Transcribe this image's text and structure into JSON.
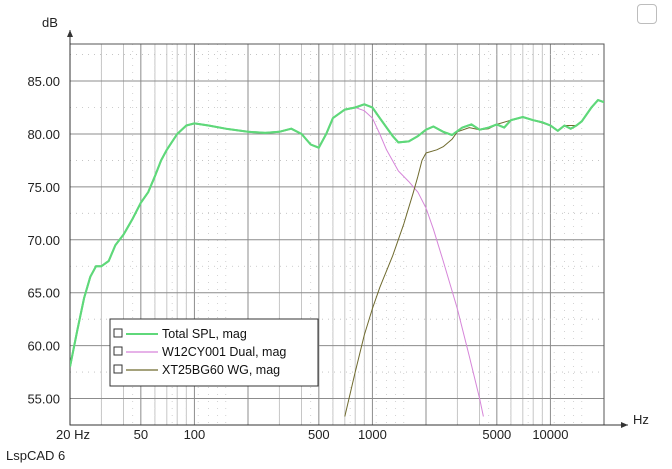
{
  "app_label": "LspCAD 6",
  "chart_data": {
    "type": "line",
    "xscale": "log",
    "xlabel": "Hz",
    "ylabel": "dB",
    "xlim": [
      20,
      20000
    ],
    "ylim": [
      52.5,
      88.5
    ],
    "grid": true,
    "legend_position": "bottom-left",
    "x_tick_labels": [
      {
        "value": 20,
        "label": "20 Hz"
      },
      {
        "value": 50,
        "label": "50"
      },
      {
        "value": 100,
        "label": "100"
      },
      {
        "value": 500,
        "label": "500"
      },
      {
        "value": 1000,
        "label": "1000"
      },
      {
        "value": 5000,
        "label": "5000"
      },
      {
        "value": 10000,
        "label": "10000"
      }
    ],
    "y_ticks": [
      55,
      60,
      65,
      70,
      75,
      80,
      85
    ],
    "y_tick_labels": [
      "55.00",
      "60.00",
      "65.00",
      "70.00",
      "75.00",
      "80.00",
      "85.00"
    ],
    "series": [
      {
        "name": "Total SPL, mag",
        "color": "#5fd87a",
        "points": [
          [
            20,
            58
          ],
          [
            22,
            61.5
          ],
          [
            24,
            64.5
          ],
          [
            26,
            66.5
          ],
          [
            28,
            67.5
          ],
          [
            30,
            67.5
          ],
          [
            33,
            68
          ],
          [
            36,
            69.5
          ],
          [
            40,
            70.5
          ],
          [
            45,
            72
          ],
          [
            50,
            73.5
          ],
          [
            55,
            74.5
          ],
          [
            60,
            76
          ],
          [
            65,
            77.5
          ],
          [
            70,
            78.5
          ],
          [
            80,
            80
          ],
          [
            90,
            80.8
          ],
          [
            100,
            81
          ],
          [
            120,
            80.8
          ],
          [
            150,
            80.5
          ],
          [
            200,
            80.2
          ],
          [
            250,
            80.1
          ],
          [
            300,
            80.2
          ],
          [
            350,
            80.5
          ],
          [
            400,
            80
          ],
          [
            450,
            79
          ],
          [
            500,
            78.7
          ],
          [
            550,
            80
          ],
          [
            600,
            81.5
          ],
          [
            700,
            82.3
          ],
          [
            800,
            82.5
          ],
          [
            900,
            82.8
          ],
          [
            1000,
            82.5
          ],
          [
            1100,
            81.5
          ],
          [
            1300,
            79.8
          ],
          [
            1400,
            79.2
          ],
          [
            1600,
            79.3
          ],
          [
            1800,
            79.8
          ],
          [
            2000,
            80.4
          ],
          [
            2200,
            80.7
          ],
          [
            2500,
            80.2
          ],
          [
            2800,
            79.9
          ],
          [
            3200,
            80.6
          ],
          [
            3600,
            80.9
          ],
          [
            4000,
            80.4
          ],
          [
            4500,
            80.6
          ],
          [
            5000,
            80.9
          ],
          [
            5500,
            80.6
          ],
          [
            6000,
            81.3
          ],
          [
            7000,
            81.6
          ],
          [
            8000,
            81.3
          ],
          [
            9000,
            81.1
          ],
          [
            10000,
            80.8
          ],
          [
            11000,
            80.3
          ],
          [
            12000,
            80.8
          ],
          [
            13000,
            80.5
          ],
          [
            14000,
            80.8
          ],
          [
            15000,
            81.2
          ],
          [
            17000,
            82.5
          ],
          [
            18500,
            83.2
          ],
          [
            20000,
            83
          ]
        ]
      },
      {
        "name": "W12CY001 Dual, mag",
        "color": "#d685d9",
        "points": [
          [
            20,
            58
          ],
          [
            22,
            61.5
          ],
          [
            24,
            64.5
          ],
          [
            26,
            66.5
          ],
          [
            28,
            67.5
          ],
          [
            30,
            67.5
          ],
          [
            33,
            68
          ],
          [
            36,
            69.5
          ],
          [
            40,
            70.5
          ],
          [
            45,
            72
          ],
          [
            50,
            73.5
          ],
          [
            55,
            74.5
          ],
          [
            60,
            76
          ],
          [
            65,
            77.5
          ],
          [
            70,
            78.5
          ],
          [
            80,
            80
          ],
          [
            90,
            80.8
          ],
          [
            100,
            81
          ],
          [
            120,
            80.8
          ],
          [
            150,
            80.5
          ],
          [
            200,
            80.2
          ],
          [
            250,
            80.1
          ],
          [
            300,
            80.2
          ],
          [
            350,
            80.5
          ],
          [
            400,
            80
          ],
          [
            450,
            79
          ],
          [
            500,
            78.7
          ],
          [
            550,
            80
          ],
          [
            600,
            81.5
          ],
          [
            700,
            82.3
          ],
          [
            800,
            82.5
          ],
          [
            900,
            82.2
          ],
          [
            1000,
            81.5
          ],
          [
            1100,
            80
          ],
          [
            1200,
            78.5
          ],
          [
            1400,
            76.5
          ],
          [
            1600,
            75.5
          ],
          [
            1800,
            74.5
          ],
          [
            2000,
            73
          ],
          [
            2200,
            71
          ],
          [
            2500,
            68
          ],
          [
            3000,
            63.5
          ],
          [
            3500,
            59
          ],
          [
            4000,
            55
          ],
          [
            4200,
            53.3
          ]
        ]
      },
      {
        "name": "XT25BG60 WG, mag",
        "color": "#6f6a2e",
        "points": [
          [
            700,
            53.3
          ],
          [
            800,
            57.5
          ],
          [
            900,
            61
          ],
          [
            1000,
            63.5
          ],
          [
            1100,
            65.5
          ],
          [
            1300,
            68.5
          ],
          [
            1500,
            71.5
          ],
          [
            1700,
            74.5
          ],
          [
            1800,
            76
          ],
          [
            1900,
            77.5
          ],
          [
            2000,
            78.2
          ],
          [
            2300,
            78.5
          ],
          [
            2500,
            78.8
          ],
          [
            2800,
            79.5
          ],
          [
            3000,
            80.2
          ],
          [
            3500,
            80.6
          ],
          [
            4000,
            80.4
          ],
          [
            4500,
            80.5
          ],
          [
            5000,
            80.9
          ],
          [
            6000,
            81.3
          ],
          [
            7000,
            81.6
          ],
          [
            8000,
            81.3
          ],
          [
            10000,
            80.8
          ],
          [
            11000,
            80.3
          ],
          [
            12000,
            80.8
          ],
          [
            14000,
            80.8
          ],
          [
            15000,
            81.2
          ],
          [
            17000,
            82.5
          ],
          [
            18500,
            83.2
          ],
          [
            20000,
            83
          ]
        ]
      }
    ]
  }
}
